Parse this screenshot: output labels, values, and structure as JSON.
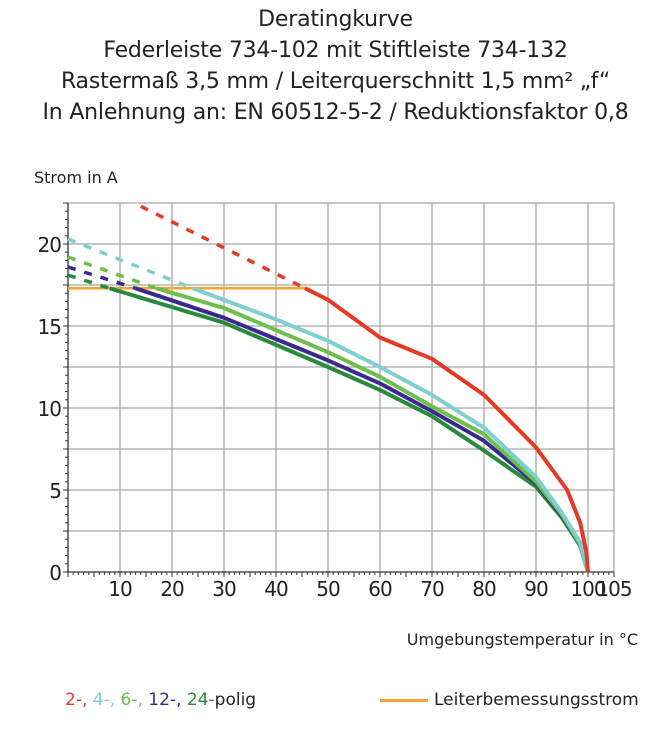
{
  "titles": [
    "Deratingkurve",
    "Federleiste 734-102 mit Stiftleiste 734-132",
    "Rastermaß 3,5 mm / Leiterquerschnitt 1,5 mm² „f“",
    "In Anlehnung an: EN 60512-5-2 / Reduktionsfaktor 0,8"
  ],
  "chart_data": {
    "type": "line",
    "title": "Deratingkurve",
    "xlabel": "Umgebungstemperatur in °C",
    "ylabel": "Strom in A",
    "xlim": [
      0,
      105
    ],
    "ylim": [
      0,
      22.5
    ],
    "x_ticks": [
      10,
      20,
      30,
      40,
      50,
      60,
      70,
      80,
      90,
      100,
      105
    ],
    "y_ticks": [
      0,
      5,
      10,
      15,
      20
    ],
    "grid": true,
    "series": [
      {
        "name": "2-",
        "color": "#e63a26",
        "dashed": [
          [
            14,
            22.3
          ],
          [
            45.6,
            17.3
          ]
        ],
        "solid": [
          [
            45.6,
            17.3
          ],
          [
            50,
            16.6
          ],
          [
            60,
            14.3
          ],
          [
            70,
            13.0
          ],
          [
            80,
            10.8
          ],
          [
            90,
            7.6
          ],
          [
            96,
            5.0
          ],
          [
            98.5,
            3.0
          ],
          [
            99.7,
            1.2
          ],
          [
            100,
            0
          ]
        ]
      },
      {
        "name": "4-",
        "color": "#7fcfd0",
        "dashed": [
          [
            0,
            20.3
          ],
          [
            24,
            17.3
          ]
        ],
        "solid": [
          [
            24,
            17.3
          ],
          [
            40,
            15.4
          ],
          [
            50,
            14.1
          ],
          [
            60,
            12.5
          ],
          [
            70,
            10.8
          ],
          [
            80,
            8.8
          ],
          [
            90,
            5.8
          ],
          [
            95,
            3.6
          ],
          [
            98.5,
            1.8
          ],
          [
            100,
            0
          ]
        ]
      },
      {
        "name": "6-",
        "color": "#6cbf4a",
        "dashed": [
          [
            0,
            19.2
          ],
          [
            17,
            17.3
          ]
        ],
        "solid": [
          [
            17,
            17.3
          ],
          [
            30,
            16.1
          ],
          [
            50,
            13.4
          ],
          [
            60,
            11.9
          ],
          [
            70,
            10.1
          ],
          [
            80,
            8.4
          ],
          [
            90,
            5.5
          ],
          [
            95,
            3.5
          ],
          [
            98.5,
            1.7
          ],
          [
            100,
            0
          ]
        ]
      },
      {
        "name": "12-",
        "color": "#3b2a8e",
        "dashed": [
          [
            0,
            18.6
          ],
          [
            13,
            17.3
          ]
        ],
        "solid": [
          [
            13,
            17.3
          ],
          [
            30,
            15.5
          ],
          [
            50,
            12.9
          ],
          [
            60,
            11.5
          ],
          [
            70,
            9.8
          ],
          [
            80,
            8.0
          ],
          [
            90,
            5.4
          ],
          [
            95,
            3.4
          ],
          [
            98.5,
            1.7
          ],
          [
            100,
            0
          ]
        ]
      },
      {
        "name": "24-",
        "color": "#2a8a3c",
        "dashed": [
          [
            0,
            18.1
          ],
          [
            8,
            17.3
          ]
        ],
        "solid": [
          [
            8,
            17.3
          ],
          [
            30,
            15.2
          ],
          [
            50,
            12.5
          ],
          [
            60,
            11.1
          ],
          [
            70,
            9.5
          ],
          [
            80,
            7.4
          ],
          [
            90,
            5.2
          ],
          [
            95,
            3.3
          ],
          [
            98.5,
            1.6
          ],
          [
            100,
            0
          ]
        ]
      }
    ],
    "reference_line": {
      "name": "Leiterbemessungsstrom",
      "color": "#f5a52a",
      "value": 17.3,
      "x_range": [
        0,
        46
      ]
    }
  },
  "legend": {
    "series_labels": [
      "2-",
      ", ",
      "4-",
      ", ",
      "6-",
      ", ",
      "12-",
      ", ",
      "24-",
      "polig"
    ],
    "reference_label": "Leiterbemessungsstrom"
  }
}
